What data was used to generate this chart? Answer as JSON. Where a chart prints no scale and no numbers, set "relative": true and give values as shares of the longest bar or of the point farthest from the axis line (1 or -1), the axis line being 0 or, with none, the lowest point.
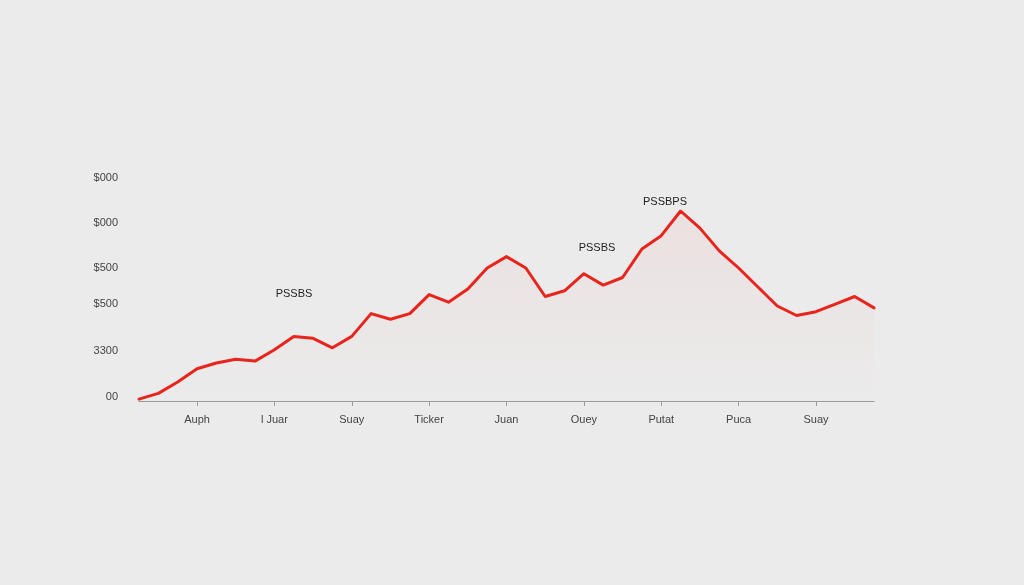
{
  "chart_data": {
    "type": "area",
    "relative": true,
    "marker": "none",
    "line_style": "solid",
    "categories": [
      null,
      null,
      null,
      "Auph",
      null,
      null,
      null,
      "l Juar",
      null,
      null,
      null,
      "Suay",
      null,
      null,
      null,
      "Ticker",
      null,
      null,
      null,
      "Juan",
      null,
      null,
      null,
      "Ouey",
      null,
      null,
      null,
      "Putat",
      null,
      null,
      null,
      "Puca",
      null,
      null,
      null,
      "Suay",
      null,
      null,
      null
    ],
    "series": [
      {
        "color": "#e8241c",
        "values": [
          0.01,
          0.04,
          0.1,
          0.17,
          0.2,
          0.22,
          0.21,
          0.27,
          0.34,
          0.33,
          0.28,
          0.34,
          0.46,
          0.43,
          0.46,
          0.56,
          0.52,
          0.59,
          0.7,
          0.76,
          0.7,
          0.55,
          0.58,
          0.67,
          0.61,
          0.65,
          0.8,
          0.87,
          1,
          0.91,
          0.79,
          0.7,
          0.6,
          0.5,
          0.45,
          0.47,
          0.51,
          0.55,
          0.49
        ]
      }
    ],
    "annotations": [
      "$000",
      "$000",
      "$500",
      "$500",
      "3300",
      "00",
      "PSSBS",
      "PSSBS",
      "PSSBPS"
    ]
  }
}
